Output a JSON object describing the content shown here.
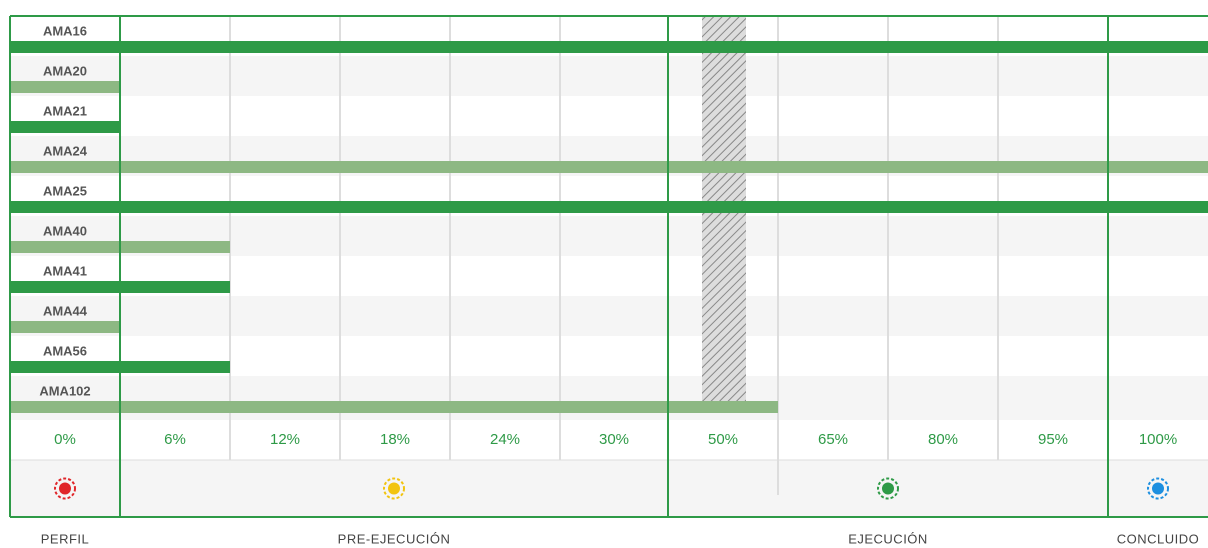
{
  "chart_data": {
    "type": "progress",
    "rows": [
      {
        "label": "AMA16",
        "value": 100,
        "color": "#2e9a47"
      },
      {
        "label": "AMA20",
        "value": 0,
        "color": "#8db883"
      },
      {
        "label": "AMA21",
        "value": 0,
        "color": "#2e9a47"
      },
      {
        "label": "AMA24",
        "value": 100,
        "color": "#8db883"
      },
      {
        "label": "AMA25",
        "value": 100,
        "color": "#2e9a47"
      },
      {
        "label": "AMA40",
        "value": 6,
        "color": "#8db883"
      },
      {
        "label": "AMA41",
        "value": 6,
        "color": "#2e9a47"
      },
      {
        "label": "AMA44",
        "value": 0,
        "color": "#8db883"
      },
      {
        "label": "AMA56",
        "value": 6,
        "color": "#2e9a47"
      },
      {
        "label": "AMA102",
        "value": 50,
        "color": "#8db883"
      }
    ],
    "ticks": [
      {
        "value": 0,
        "label": "0%"
      },
      {
        "value": 6,
        "label": "6%"
      },
      {
        "value": 12,
        "label": "12%"
      },
      {
        "value": 18,
        "label": "18%"
      },
      {
        "value": 24,
        "label": "24%"
      },
      {
        "value": 30,
        "label": "30%"
      },
      {
        "value": 50,
        "label": "50%"
      },
      {
        "value": 65,
        "label": "65%"
      },
      {
        "value": 80,
        "label": "80%"
      },
      {
        "value": 95,
        "label": "95%"
      },
      {
        "value": 100,
        "label": "100%"
      }
    ],
    "stages": [
      {
        "label": "PERFIL",
        "color": "#e0262a"
      },
      {
        "label": "PRE-EJECUCIÓN",
        "color": "#f2c40f"
      },
      {
        "label": "EJECUCIÓN",
        "color": "#2e9a47"
      },
      {
        "label": "CONCLUIDO",
        "color": "#1d8fe0"
      }
    ]
  }
}
